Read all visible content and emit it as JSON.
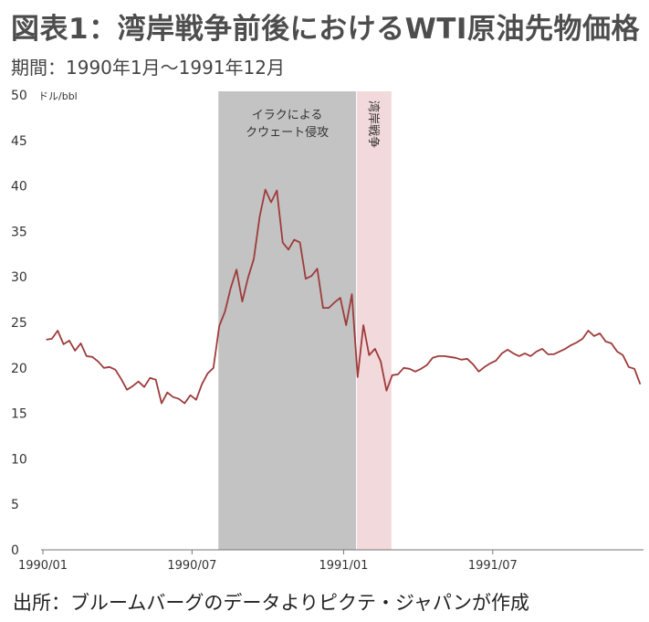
{
  "title": "図表1：湾岸戦争前後におけるWTI原油先物価格",
  "subtitle": "期間：1990年1月～1991年12月",
  "source": "出所：ブルームバーグのデータよりピクテ・ジャパンが作成",
  "chart_data": {
    "type": "line",
    "unit_label": "ドル/bbl",
    "ylim": [
      0,
      50
    ],
    "yticks": [
      0,
      5,
      10,
      15,
      20,
      25,
      30,
      35,
      40,
      45,
      50
    ],
    "xticks": [
      "1990/01",
      "1990/07",
      "1991/01",
      "1991/07"
    ],
    "grid": false,
    "line_color": "#9e3b3b",
    "series": [
      {
        "x": [
          "1990-01-05",
          "1990-01-12",
          "1990-01-19",
          "1990-01-26",
          "1990-02-02",
          "1990-02-09",
          "1990-02-16",
          "1990-02-23",
          "1990-03-02",
          "1990-03-09",
          "1990-03-16",
          "1990-03-23",
          "1990-03-30",
          "1990-04-06",
          "1990-04-13",
          "1990-04-20",
          "1990-04-27",
          "1990-05-04",
          "1990-05-11",
          "1990-05-18",
          "1990-05-25",
          "1990-06-01",
          "1990-06-08",
          "1990-06-15",
          "1990-06-22",
          "1990-06-29",
          "1990-07-06",
          "1990-07-13",
          "1990-07-20",
          "1990-07-27",
          "1990-08-03",
          "1990-08-10",
          "1990-08-17",
          "1990-08-24",
          "1990-08-31",
          "1990-09-07",
          "1990-09-14",
          "1990-09-21",
          "1990-09-28",
          "1990-10-05",
          "1990-10-12",
          "1990-10-19",
          "1990-10-26",
          "1990-11-02",
          "1990-11-09",
          "1990-11-16",
          "1990-11-23",
          "1990-11-30",
          "1990-12-07",
          "1990-12-14",
          "1990-12-21",
          "1990-12-28",
          "1991-01-04",
          "1991-01-11",
          "1991-01-18",
          "1991-01-25",
          "1991-02-01",
          "1991-02-08",
          "1991-02-15",
          "1991-02-22",
          "1991-03-01",
          "1991-03-08",
          "1991-03-15",
          "1991-03-22",
          "1991-03-29",
          "1991-04-05",
          "1991-04-12",
          "1991-04-19",
          "1991-04-26",
          "1991-05-03",
          "1991-05-10",
          "1991-05-17",
          "1991-05-24",
          "1991-05-31",
          "1991-06-07",
          "1991-06-14",
          "1991-06-21",
          "1991-06-28",
          "1991-07-05",
          "1991-07-12",
          "1991-07-19",
          "1991-07-26",
          "1991-08-02",
          "1991-08-09",
          "1991-08-16",
          "1991-08-23",
          "1991-08-30",
          "1991-09-06",
          "1991-09-13",
          "1991-09-20",
          "1991-09-27",
          "1991-10-04",
          "1991-10-11",
          "1991-10-18",
          "1991-10-25",
          "1991-11-01",
          "1991-11-08",
          "1991-11-15",
          "1991-11-22",
          "1991-11-29",
          "1991-12-06",
          "1991-12-13",
          "1991-12-20",
          "1991-12-27"
        ],
        "values": [
          23.1,
          23.2,
          24.1,
          22.6,
          23.0,
          21.9,
          22.7,
          21.3,
          21.2,
          20.7,
          20.0,
          20.1,
          19.8,
          18.8,
          17.6,
          18.0,
          18.5,
          17.9,
          18.9,
          18.7,
          16.1,
          17.3,
          16.8,
          16.6,
          16.1,
          17.0,
          16.5,
          18.2,
          19.4,
          20.0,
          24.6,
          26.2,
          28.8,
          30.8,
          27.3,
          29.9,
          32.0,
          36.6,
          39.6,
          38.2,
          39.5,
          33.8,
          33.0,
          34.1,
          33.8,
          29.8,
          30.1,
          30.9,
          26.6,
          26.6,
          27.2,
          27.7,
          24.7,
          28.1,
          19.0,
          24.7,
          21.4,
          22.1,
          20.7,
          17.5,
          19.2,
          19.3,
          20.0,
          19.9,
          19.6,
          19.9,
          20.3,
          21.1,
          21.3,
          21.3,
          21.2,
          21.1,
          20.9,
          21.0,
          20.4,
          19.6,
          20.1,
          20.5,
          20.8,
          21.6,
          22.0,
          21.6,
          21.3,
          21.6,
          21.3,
          21.8,
          22.1,
          21.5,
          21.5,
          21.8,
          22.1,
          22.5,
          22.8,
          23.2,
          24.1,
          23.5,
          23.8,
          22.9,
          22.7,
          21.8,
          21.4,
          20.1,
          19.9,
          18.2
        ]
      }
    ],
    "annotations": [
      {
        "label": "イラクによる\nクウェート侵攻",
        "start": "1990-08-02",
        "end": "1991-01-16",
        "color": "#c3c3c3"
      },
      {
        "label": "湾岸戦争",
        "start": "1991-01-17",
        "end": "1991-02-28",
        "color": "#f2d9db"
      }
    ]
  }
}
